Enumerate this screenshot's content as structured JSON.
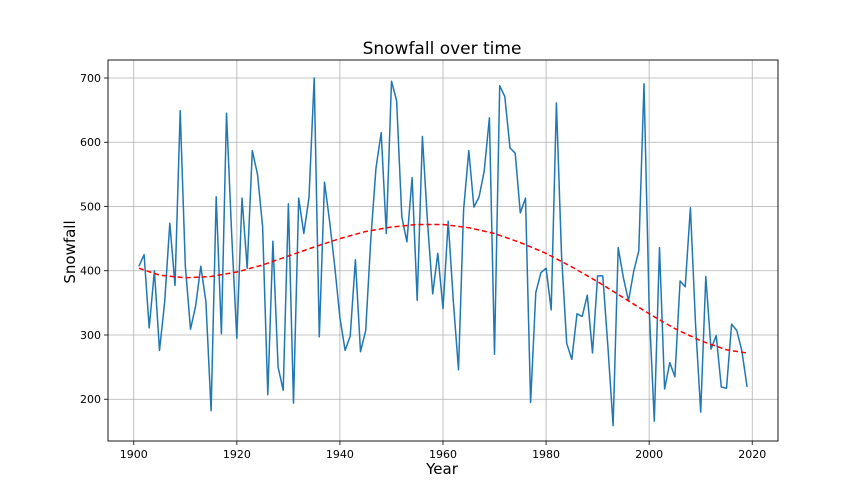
{
  "chart_data": {
    "type": "line",
    "title": "Snowfall over time",
    "xlabel": "Year",
    "ylabel": "Snowfall",
    "xlim": [
      1895,
      2025
    ],
    "ylim": [
      135,
      728
    ],
    "x_ticks": [
      1900,
      1920,
      1940,
      1960,
      1980,
      2000,
      2020
    ],
    "y_ticks": [
      200,
      300,
      400,
      500,
      600,
      700
    ],
    "grid": true,
    "series": [
      {
        "style": "solid",
        "color": "#1f77b4",
        "x": [
          1901,
          1902,
          1903,
          1904,
          1905,
          1906,
          1907,
          1908,
          1909,
          1910,
          1911,
          1912,
          1913,
          1914,
          1915,
          1916,
          1917,
          1918,
          1919,
          1920,
          1921,
          1922,
          1923,
          1924,
          1925,
          1926,
          1927,
          1928,
          1929,
          1930,
          1931,
          1932,
          1933,
          1934,
          1935,
          1936,
          1937,
          1938,
          1939,
          1940,
          1941,
          1942,
          1943,
          1944,
          1945,
          1946,
          1947,
          1948,
          1949,
          1950,
          1951,
          1952,
          1953,
          1954,
          1955,
          1956,
          1957,
          1958,
          1959,
          1960,
          1961,
          1962,
          1963,
          1964,
          1965,
          1966,
          1967,
          1968,
          1969,
          1970,
          1971,
          1972,
          1973,
          1974,
          1975,
          1976,
          1977,
          1978,
          1979,
          1980,
          1981,
          1982,
          1983,
          1984,
          1985,
          1986,
          1987,
          1988,
          1989,
          1990,
          1991,
          1992,
          1993,
          1994,
          1995,
          1996,
          1997,
          1998,
          1999,
          2000,
          2001,
          2002,
          2003,
          2004,
          2005,
          2006,
          2007,
          2008,
          2009,
          2010,
          2011,
          2012,
          2013,
          2014,
          2015,
          2016,
          2017,
          2018,
          2019
        ],
        "y": [
          407,
          425,
          311,
          400,
          276,
          352,
          474,
          377,
          649,
          408,
          309,
          345,
          407,
          352,
          182,
          515,
          302,
          645,
          456,
          295,
          513,
          404,
          587,
          550,
          469,
          207,
          446,
          250,
          214,
          504,
          194,
          513,
          458,
          514,
          700,
          297,
          538,
          477,
          406,
          327,
          276,
          298,
          417,
          274,
          307,
          449,
          560,
          615,
          458,
          695,
          665,
          484,
          445,
          545,
          354,
          609,
          476,
          364,
          427,
          341,
          477,
          353,
          246,
          495,
          587,
          499,
          515,
          555,
          638,
          270,
          688,
          671,
          591,
          583,
          490,
          513,
          195,
          366,
          397,
          404,
          339,
          661,
          425,
          287,
          262,
          333,
          329,
          362,
          272,
          392,
          392,
          282,
          159,
          436,
          389,
          353,
          399,
          431,
          691,
          340,
          166,
          436,
          216,
          257,
          235,
          384,
          375,
          498,
          318,
          180,
          391,
          278,
          299,
          219,
          217,
          317,
          307,
          275,
          219
        ]
      },
      {
        "style": "dashed",
        "color": "#ff0000",
        "x": [
          1901,
          1905,
          1910,
          1915,
          1920,
          1925,
          1930,
          1935,
          1940,
          1945,
          1950,
          1955,
          1960,
          1965,
          1970,
          1975,
          1980,
          1985,
          1990,
          1995,
          2000,
          2005,
          2010,
          2015,
          2019
        ],
        "y": [
          404,
          393,
          389,
          391,
          398,
          409,
          423,
          437,
          450,
          461,
          468,
          472,
          472,
          467,
          458,
          444,
          427,
          406,
          383,
          358,
          333,
          310,
          291,
          277,
          272
        ]
      }
    ]
  }
}
